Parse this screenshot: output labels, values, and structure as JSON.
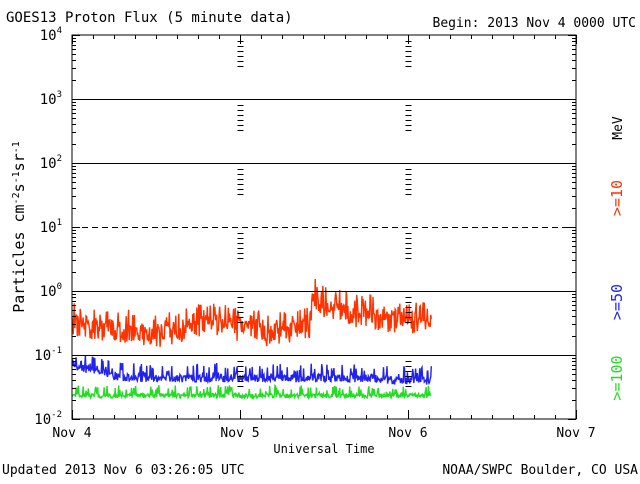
{
  "header": {
    "title": "GOES13 Proton Flux (5 minute data)",
    "begin": "Begin: 2013 Nov 4 0000 UTC"
  },
  "footer": {
    "updated": "Updated 2013 Nov  6 03:26:05 UTC",
    "credit": "NOAA/SWPC Boulder, CO USA"
  },
  "colors": {
    "ge10": "#ff3300",
    "ge50": "#2222ee",
    "ge100": "#22dd22",
    "axis": "#000000"
  },
  "chart_data": {
    "type": "line",
    "title": "GOES13 Proton Flux (5 minute data)",
    "xlabel": "Universal Time",
    "ylabel": "Particles cm-2s-1sr-1",
    "y_scale": "log",
    "ylim": [
      0.01,
      10000
    ],
    "xlim": [
      0,
      72
    ],
    "x_unit": "hours since 2013 Nov 4 0000 UTC",
    "x_ticks": [
      {
        "value": 0,
        "label": "Nov 4"
      },
      {
        "value": 24,
        "label": "Nov 5"
      },
      {
        "value": 48,
        "label": "Nov 6"
      },
      {
        "value": 72,
        "label": "Nov 7"
      }
    ],
    "y_ticks": [
      {
        "value": 0.01,
        "base": "10",
        "exp": "-2"
      },
      {
        "value": 0.1,
        "base": "10",
        "exp": "-1"
      },
      {
        "value": 1,
        "base": "10",
        "exp": "0"
      },
      {
        "value": 10,
        "base": "10",
        "exp": "1"
      },
      {
        "value": 100,
        "base": "10",
        "exp": "2"
      },
      {
        "value": 1000,
        "base": "10",
        "exp": "3"
      },
      {
        "value": 10000,
        "base": "10",
        "exp": "4"
      }
    ],
    "reference_lines": [
      {
        "value": 10,
        "style": "dashed"
      }
    ],
    "unit_label": "MeV",
    "series": [
      {
        "name": ">=10",
        "color": "#ff3300",
        "x_start": 0,
        "x_end": 51.4,
        "x": [
          0,
          2,
          4,
          6,
          8,
          10,
          12,
          14,
          16,
          18,
          20,
          22,
          24,
          26,
          28,
          30,
          32,
          34,
          34.5,
          36,
          38,
          40,
          42,
          44,
          46,
          48,
          50,
          51.4
        ],
        "y": [
          0.45,
          0.4,
          0.35,
          0.3,
          0.35,
          0.3,
          0.28,
          0.32,
          0.35,
          0.4,
          0.45,
          0.4,
          0.35,
          0.35,
          0.3,
          0.3,
          0.35,
          0.4,
          1.2,
          0.8,
          0.7,
          0.6,
          0.6,
          0.5,
          0.5,
          0.5,
          0.45,
          0.4
        ]
      },
      {
        "name": ">=50",
        "color": "#2222ee",
        "x_start": 0,
        "x_end": 51.4,
        "x": [
          0,
          2,
          4,
          6,
          8,
          10,
          12,
          14,
          16,
          18,
          20,
          22,
          24,
          26,
          28,
          30,
          32,
          34,
          36,
          38,
          40,
          42,
          44,
          46,
          48,
          50,
          51.4
        ],
        "y": [
          0.08,
          0.07,
          0.06,
          0.055,
          0.05,
          0.05,
          0.05,
          0.05,
          0.05,
          0.05,
          0.05,
          0.05,
          0.05,
          0.05,
          0.05,
          0.05,
          0.05,
          0.05,
          0.05,
          0.05,
          0.05,
          0.05,
          0.05,
          0.045,
          0.045,
          0.045,
          0.045
        ]
      },
      {
        "name": ">=100",
        "color": "#22dd22",
        "x_start": 0,
        "x_end": 51.4,
        "x": [
          0,
          4,
          8,
          12,
          16,
          20,
          24,
          28,
          32,
          36,
          40,
          44,
          48,
          51.4
        ],
        "y": [
          0.025,
          0.025,
          0.025,
          0.025,
          0.025,
          0.025,
          0.025,
          0.025,
          0.025,
          0.025,
          0.025,
          0.025,
          0.025,
          0.025
        ]
      }
    ]
  }
}
